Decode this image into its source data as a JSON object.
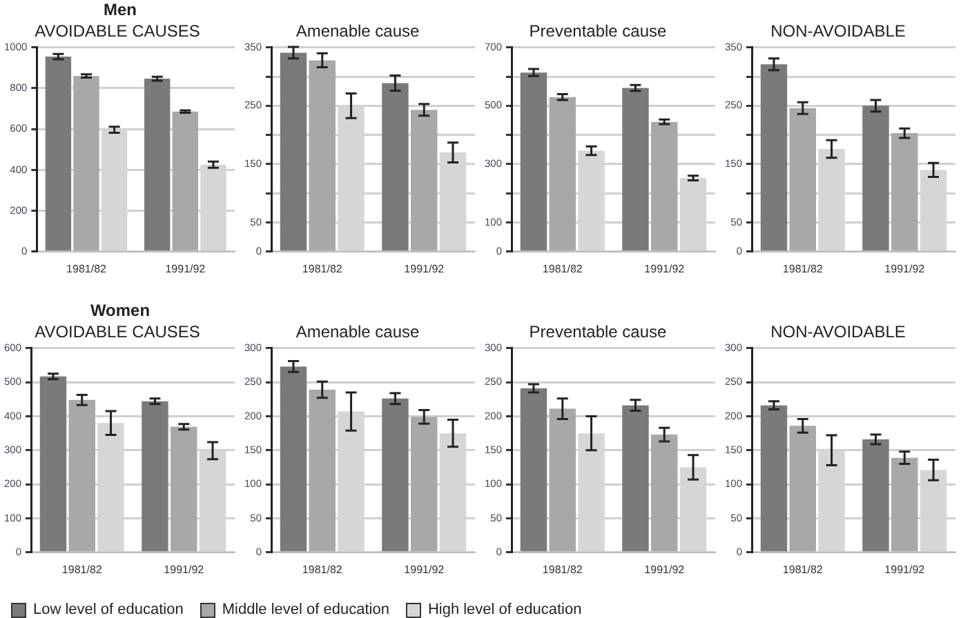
{
  "chart_data": [
    {
      "type": "bar",
      "subtitle": "Men",
      "title": "AVOIDABLE CAUSES",
      "categories": [
        "1981/82",
        "1991/92"
      ],
      "ylim": [
        0,
        1000
      ],
      "yticks": [
        0,
        200,
        400,
        600,
        800,
        1000
      ],
      "grid": "y",
      "legend": "bottom",
      "series": [
        {
          "name": "Low level of education",
          "color": "#7a7a7a",
          "values": [
            955,
            847
          ],
          "errors": [
            13,
            10
          ]
        },
        {
          "name": "Middle level of education",
          "color": "#a8a8a8",
          "values": [
            860,
            686
          ],
          "errors": [
            8,
            6
          ]
        },
        {
          "name": "High level of education",
          "color": "#d6d6d6",
          "values": [
            597,
            426
          ],
          "errors": [
            15,
            15
          ]
        }
      ]
    },
    {
      "type": "bar",
      "title": "Amenable cause",
      "categories": [
        "1981/82",
        "1991/92"
      ],
      "ylim": [
        0,
        350
      ],
      "yticks": [
        0,
        50,
        {
          "value": 100,
          "label": null
        },
        150,
        {
          "value": 200,
          "label": null
        },
        250,
        {
          "value": 300,
          "label": null
        },
        350
      ],
      "grid": "y",
      "series": [
        {
          "color": "#7a7a7a",
          "values": [
            341,
            289
          ],
          "errors": [
            10,
            13
          ]
        },
        {
          "color": "#a8a8a8",
          "values": [
            328,
            243
          ],
          "errors": [
            12,
            10
          ]
        },
        {
          "color": "#d6d6d6",
          "values": [
            250,
            170
          ],
          "errors": [
            21,
            17
          ]
        }
      ]
    },
    {
      "type": "bar",
      "title": "Preventable cause",
      "categories": [
        "1981/82",
        "1991/92"
      ],
      "ylim": [
        0,
        700
      ],
      "yticks": [
        0,
        100,
        {
          "value": 200,
          "label": null
        },
        300,
        {
          "value": 400,
          "label": null
        },
        500,
        {
          "value": 600,
          "label": null
        },
        700
      ],
      "grid": "y",
      "series": [
        {
          "color": "#7a7a7a",
          "values": [
            614,
            561
          ],
          "errors": [
            12,
            10
          ]
        },
        {
          "color": "#a8a8a8",
          "values": [
            530,
            445
          ],
          "errors": [
            10,
            8
          ]
        },
        {
          "color": "#d6d6d6",
          "values": [
            346,
            252
          ],
          "errors": [
            15,
            8
          ]
        }
      ]
    },
    {
      "type": "bar",
      "title": "NON-AVOIDABLE",
      "categories": [
        "1981/82",
        "1991/92"
      ],
      "ylim": [
        0,
        350
      ],
      "yticks": [
        0,
        50,
        {
          "value": 100,
          "label": null
        },
        150,
        {
          "value": 200,
          "label": null
        },
        250,
        {
          "value": 300,
          "label": null
        },
        350
      ],
      "grid": "y",
      "series": [
        {
          "color": "#7a7a7a",
          "values": [
            321,
            250
          ],
          "errors": [
            10,
            10
          ]
        },
        {
          "color": "#a8a8a8",
          "values": [
            246,
            203
          ],
          "errors": [
            10,
            8
          ]
        },
        {
          "color": "#d6d6d6",
          "values": [
            176,
            140
          ],
          "errors": [
            15,
            12
          ]
        }
      ]
    },
    {
      "type": "bar",
      "subtitle": "Women",
      "title": "AVOIDABLE CAUSES",
      "categories": [
        "1981/82",
        "1991/92"
      ],
      "ylim": [
        0,
        600
      ],
      "yticks": [
        0,
        100,
        200,
        300,
        400,
        500,
        600
      ],
      "grid": "y",
      "series": [
        {
          "color": "#7a7a7a",
          "values": [
            517,
            444
          ],
          "errors": [
            8,
            8
          ]
        },
        {
          "color": "#a8a8a8",
          "values": [
            448,
            369
          ],
          "errors": [
            15,
            8
          ]
        },
        {
          "color": "#d6d6d6",
          "values": [
            380,
            299
          ],
          "errors": [
            35,
            25
          ]
        }
      ]
    },
    {
      "type": "bar",
      "title": "Amenable cause",
      "categories": [
        "1981/82",
        "1991/92"
      ],
      "ylim": [
        0,
        300
      ],
      "yticks": [
        0,
        50,
        100,
        150,
        200,
        250,
        300
      ],
      "grid": "y",
      "series": [
        {
          "color": "#7a7a7a",
          "values": [
            273,
            226
          ],
          "errors": [
            8,
            8
          ]
        },
        {
          "color": "#a8a8a8",
          "values": [
            239,
            199
          ],
          "errors": [
            12,
            10
          ]
        },
        {
          "color": "#d6d6d6",
          "values": [
            207,
            175
          ],
          "errors": [
            28,
            20
          ]
        }
      ]
    },
    {
      "type": "bar",
      "title": "Preventable cause",
      "categories": [
        "1981/82",
        "1991/92"
      ],
      "ylim": [
        0,
        300
      ],
      "yticks": [
        0,
        50,
        100,
        150,
        200,
        250,
        300
      ],
      "grid": "y",
      "series": [
        {
          "color": "#7a7a7a",
          "values": [
            241,
            216
          ],
          "errors": [
            6,
            8
          ]
        },
        {
          "color": "#a8a8a8",
          "values": [
            211,
            173
          ],
          "errors": [
            15,
            10
          ]
        },
        {
          "color": "#d6d6d6",
          "values": [
            175,
            125
          ],
          "errors": [
            25,
            18
          ]
        }
      ]
    },
    {
      "type": "bar",
      "title": "NON-AVOIDABLE",
      "categories": [
        "1981/82",
        "1991/92"
      ],
      "ylim": [
        0,
        300
      ],
      "yticks": [
        0,
        50,
        100,
        150,
        200,
        250,
        300
      ],
      "grid": "y",
      "series": [
        {
          "color": "#7a7a7a",
          "values": [
            216,
            166
          ],
          "errors": [
            6,
            7
          ]
        },
        {
          "color": "#a8a8a8",
          "values": [
            186,
            139
          ],
          "errors": [
            10,
            9
          ]
        },
        {
          "color": "#d6d6d6",
          "values": [
            150,
            121
          ],
          "errors": [
            22,
            15
          ]
        }
      ]
    }
  ]
}
